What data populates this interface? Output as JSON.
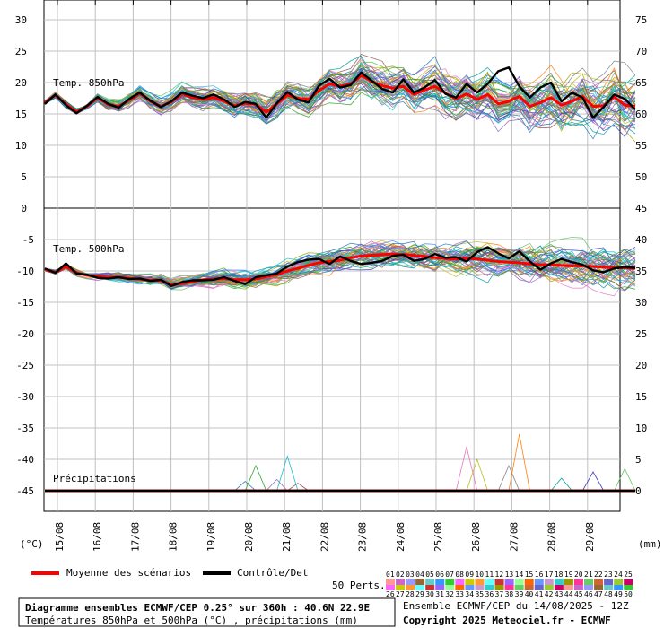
{
  "chart_data": [
    {
      "type": "line",
      "panel": "upper",
      "label": "Temp. 850hPa",
      "y_left": {
        "ticks": [
          30,
          25,
          20,
          15,
          10,
          5,
          0
        ],
        "range": [
          0,
          33.3
        ]
      },
      "y_right": {
        "ticks": [
          75,
          70,
          65,
          60,
          55,
          50
        ],
        "range": [
          45,
          78.3
        ]
      },
      "series": [
        {
          "name": "Moyenne des scénarios",
          "color": "#ff0000",
          "y": [
            16.8,
            18.0,
            16.5,
            15.3,
            16.2,
            17.6,
            16.5,
            16.2,
            17.2,
            18.3,
            17.0,
            16.2,
            16.9,
            18.2,
            17.6,
            17.3,
            17.6,
            17.0,
            16.3,
            16.7,
            16.5,
            15.3,
            16.6,
            18.0,
            17.5,
            17.3,
            18.7,
            19.8,
            19.4,
            19.8,
            21.1,
            20.2,
            19.5,
            19.1,
            19.4,
            18.1,
            18.8,
            19.4,
            18.3,
            17.4,
            18.2,
            17.3,
            18.1,
            16.6,
            17.0,
            17.8,
            16.2,
            16.8,
            17.6,
            16.4,
            17.0,
            17.8,
            16.2,
            16.3,
            17.7,
            16.4,
            16.2
          ]
        },
        {
          "name": "Contrôle/Det",
          "color": "#000000",
          "y": [
            16.6,
            18.1,
            16.4,
            15.1,
            16.3,
            17.7,
            16.6,
            16.0,
            17.4,
            18.4,
            17.1,
            16.1,
            17.0,
            18.4,
            17.9,
            17.5,
            18.1,
            17.3,
            16.1,
            16.9,
            16.6,
            14.4,
            16.7,
            18.5,
            17.3,
            16.8,
            19.5,
            20.6,
            19.2,
            19.6,
            21.6,
            20.3,
            19.0,
            18.4,
            20.5,
            18.4,
            19.2,
            20.4,
            18.2,
            17.6,
            19.8,
            18.4,
            19.8,
            21.8,
            22.4,
            19.4,
            17.6,
            19.2,
            20.0,
            17.0,
            18.4,
            17.6,
            14.4,
            16.1,
            18.1,
            17.4,
            15.7
          ]
        }
      ]
    },
    {
      "type": "line",
      "panel": "middle",
      "label": "Temp. 500hPa",
      "y_left": {
        "ticks": [
          -5,
          -10,
          -15,
          -20,
          -25,
          -30,
          -35,
          -40,
          -45
        ],
        "range": [
          -48.3,
          0
        ]
      },
      "y_right": {
        "ticks": [
          45,
          40,
          35,
          30,
          25,
          20,
          15,
          10,
          5,
          0
        ],
        "range": [
          -3.3,
          45
        ]
      },
      "series": [
        {
          "name": "Moyenne des scénarios",
          "color": "#ff0000",
          "y": [
            -9.8,
            -10.2,
            -9.3,
            -10.3,
            -10.7,
            -10.9,
            -11.0,
            -11.0,
            -11.2,
            -11.3,
            -11.5,
            -11.5,
            -12.2,
            -12.0,
            -11.7,
            -11.4,
            -11.3,
            -11.2,
            -11.4,
            -11.4,
            -11.3,
            -10.9,
            -10.6,
            -10.0,
            -9.6,
            -9.1,
            -8.7,
            -8.5,
            -8.3,
            -7.9,
            -7.6,
            -7.5,
            -7.4,
            -7.3,
            -7.4,
            -7.5,
            -7.7,
            -7.9,
            -8.0,
            -8.1,
            -8.0,
            -8.1,
            -8.3,
            -8.5,
            -8.6,
            -8.7,
            -8.9,
            -9.0,
            -9.0,
            -9.1,
            -9.2,
            -9.2,
            -9.3,
            -9.4,
            -9.5,
            -9.5,
            -9.6
          ]
        },
        {
          "name": "Contrôle/Det",
          "color": "#000000",
          "y": [
            -9.6,
            -10.3,
            -8.8,
            -10.4,
            -10.6,
            -11.1,
            -11.2,
            -11.0,
            -11.3,
            -11.2,
            -11.6,
            -11.4,
            -12.4,
            -11.8,
            -11.5,
            -11.5,
            -11.4,
            -11.0,
            -11.6,
            -12.1,
            -11.0,
            -10.7,
            -10.4,
            -9.3,
            -8.6,
            -8.2,
            -8.1,
            -8.9,
            -7.7,
            -8.4,
            -8.9,
            -8.7,
            -8.4,
            -7.6,
            -7.4,
            -8.4,
            -8.1,
            -7.3,
            -7.9,
            -7.8,
            -8.5,
            -7.0,
            -6.2,
            -7.2,
            -8.0,
            -6.9,
            -8.5,
            -9.8,
            -8.8,
            -8.1,
            -8.6,
            -9.0,
            -9.9,
            -10.2,
            -9.6,
            -9.4,
            -9.5
          ]
        }
      ]
    },
    {
      "type": "line",
      "panel": "lower",
      "label": "Précipitations",
      "y_right_ticks": [
        10,
        5,
        0
      ],
      "series": [
        {
          "name": "Moyenne des scénarios",
          "color": "#ff0000",
          "y": [
            0,
            0,
            0,
            0,
            0,
            0,
            0,
            0,
            0,
            0,
            0,
            0,
            0,
            0,
            0,
            0,
            0,
            0,
            0,
            0,
            0,
            0,
            0,
            0,
            0,
            0,
            0,
            0,
            0,
            0,
            0,
            0,
            0,
            0,
            0,
            0,
            0,
            0,
            0,
            0,
            0,
            0,
            0,
            0,
            0,
            0,
            0,
            0,
            0,
            0,
            0,
            0,
            0,
            0,
            0,
            0,
            0
          ]
        },
        {
          "name": "Contrôle/Det",
          "color": "#000000",
          "y": [
            0,
            0,
            0,
            0,
            0,
            0,
            0,
            0,
            0,
            0,
            0,
            0,
            0,
            0,
            0,
            0,
            0,
            0,
            0,
            0,
            0,
            0,
            0,
            0,
            0,
            0,
            0,
            0,
            0,
            0,
            0,
            0,
            0,
            0,
            0,
            0,
            0,
            0,
            0,
            0,
            0,
            0,
            0,
            0,
            0,
            0,
            0,
            0,
            0,
            0,
            0,
            0,
            0,
            0,
            0,
            0,
            0
          ]
        }
      ]
    }
  ],
  "x_axis": {
    "tick_labels": [
      "15/08",
      "16/08",
      "17/08",
      "18/08",
      "19/08",
      "20/08",
      "21/08",
      "22/08",
      "23/08",
      "24/08",
      "25/08",
      "26/08",
      "27/08",
      "28/08",
      "29/08"
    ],
    "left_unit": "(°C)",
    "right_unit": "(mm)"
  },
  "legend": {
    "mean_label": "Moyenne des scénarios",
    "control_label": "Contrôle/Det",
    "perts_label": "50 Perts.",
    "perts_top": [
      "01",
      "02",
      "03",
      "04",
      "05",
      "06",
      "07",
      "08",
      "09",
      "10",
      "11",
      "12",
      "13",
      "14",
      "15",
      "16",
      "17",
      "18",
      "19",
      "20",
      "21",
      "22",
      "23",
      "24",
      "25"
    ],
    "perts_bottom": [
      "26",
      "27",
      "28",
      "29",
      "30",
      "31",
      "32",
      "33",
      "34",
      "35",
      "36",
      "37",
      "38",
      "39",
      "40",
      "41",
      "42",
      "43",
      "44",
      "45",
      "46",
      "47",
      "48",
      "49",
      "50"
    ]
  },
  "info": {
    "title": "Diagramme ensembles ECMWF/CEP 0.25° sur 360h : 40.6N 22.9E",
    "subtitle": "Températures 850hPa et 500hPa (°C) , précipitations (mm)",
    "run": "Ensemble ECMWF/CEP du 14/08/2025 - 12Z",
    "copyright": "Copyright 2025 Meteociel.fr - ECMWF"
  },
  "colors": {
    "mean": "#ff0000",
    "control": "#000000",
    "grid": "#c0c0c0"
  }
}
